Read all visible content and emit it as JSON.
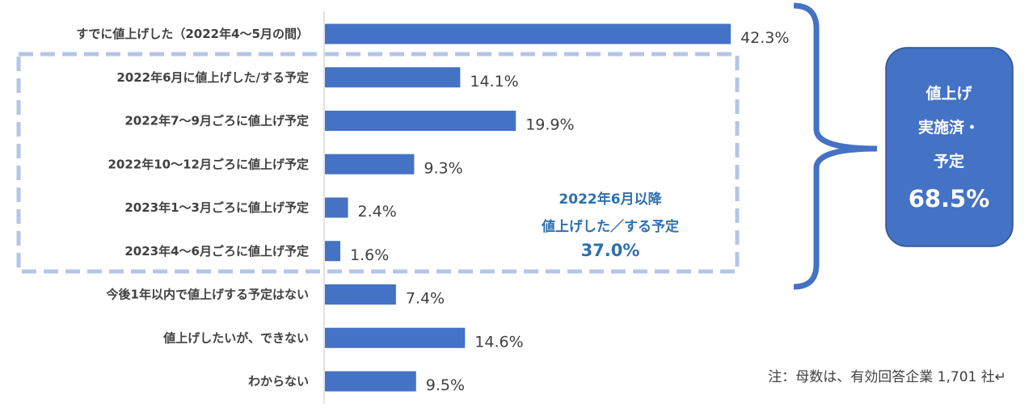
{
  "chart_data": {
    "type": "bar",
    "orientation": "horizontal",
    "categories": [
      "すでに値上げした（2022年4～5月の間）",
      "2022年6月に値上げした/する予定",
      "2022年7～9月ごろに値上げ予定",
      "2022年10～12月ごろに値上げ予定",
      "2023年1～3月ごろに値上げ予定",
      "2023年4～6月ごろに値上げ予定",
      "今後1年以内で値上げする予定はない",
      "値上げしたいが、できない",
      "わからない"
    ],
    "values": [
      42.3,
      14.1,
      19.9,
      9.3,
      2.4,
      1.6,
      7.4,
      14.6,
      9.5
    ],
    "value_labels": [
      "42.3%",
      "14.1%",
      "19.9%",
      "9.3%",
      "2.4%",
      "1.6%",
      "7.4%",
      "14.6%",
      "9.5%"
    ],
    "bar_color": "#4472c4",
    "grid": false,
    "annotations": {
      "group_box": {
        "lines": [
          "2022年6月以降",
          "値上げした／する予定",
          "37.0%"
        ],
        "color": "#2e6fb0",
        "border_color": "#b4c6e7"
      },
      "callout": {
        "lines": [
          "値上げ",
          "実施済・",
          "予定"
        ],
        "value": "68.5%",
        "color": "#4472c4"
      }
    },
    "note": "注：母数は、有効回答企業 1,701 社↵"
  }
}
